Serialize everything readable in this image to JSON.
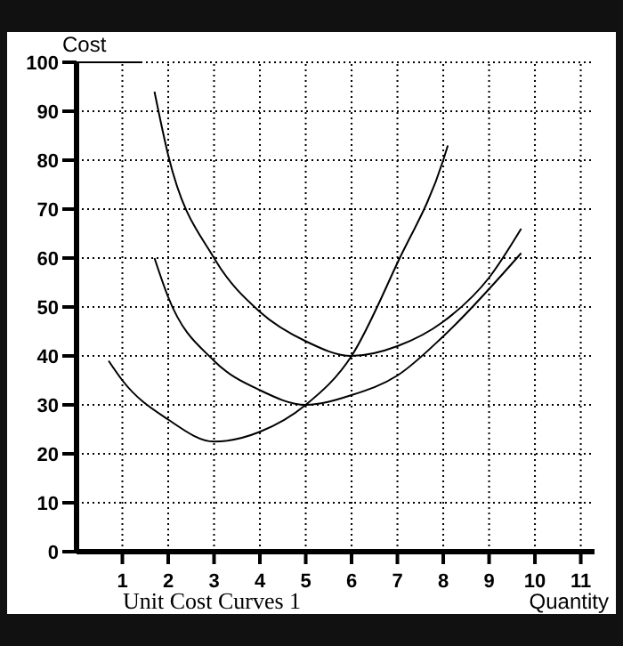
{
  "chart_data": {
    "type": "line",
    "title": "Unit Cost Curves 1",
    "xlabel": "Quantity",
    "ylabel": "Cost",
    "xlim": [
      0,
      11.3
    ],
    "ylim": [
      0,
      100
    ],
    "xticks": [
      1,
      2,
      3,
      4,
      5,
      6,
      7,
      8,
      9,
      10,
      11
    ],
    "yticks": [
      0,
      10,
      20,
      30,
      40,
      50,
      60,
      70,
      80,
      90,
      100
    ],
    "grid": true,
    "marker": "none",
    "line_style": "solid",
    "series": [
      {
        "color": "#000000",
        "x": [
          0.7,
          1,
          2,
          3,
          4,
          5,
          6,
          7,
          8,
          8.1
        ],
        "values": [
          39,
          35,
          27,
          22.5,
          24.5,
          30,
          40,
          59,
          80,
          83
        ]
      },
      {
        "color": "#000000",
        "x": [
          1.7,
          2,
          3,
          4,
          5,
          6,
          7,
          8,
          9,
          9.7
        ],
        "values": [
          94,
          81,
          60,
          49,
          43,
          40,
          42,
          47,
          56,
          66
        ]
      },
      {
        "color": "#000000",
        "x": [
          1.7,
          2,
          3,
          4,
          5,
          6,
          7,
          8,
          9.7
        ],
        "values": [
          60,
          52,
          39,
          33,
          30,
          32,
          36,
          44,
          61
        ]
      }
    ]
  }
}
